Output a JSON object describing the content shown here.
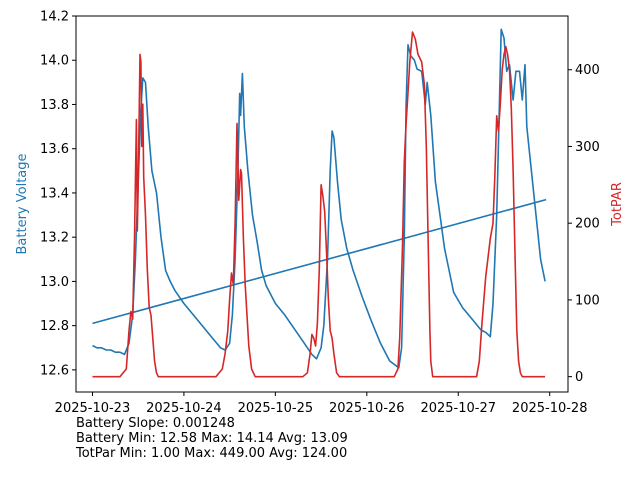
{
  "chart_data": {
    "type": "line",
    "x_axis": {
      "ticks": [
        "2025-10-23",
        "2025-10-24",
        "2025-10-25",
        "2025-10-26",
        "2025-10-27",
        "2025-10-28"
      ],
      "range_days": [
        -0.18,
        5.2
      ]
    },
    "left_axis": {
      "label": "Battery Voltage",
      "color": "#1f77b4",
      "ylim": [
        12.5,
        14.2
      ],
      "ticks": [
        "12.6",
        "12.8",
        "13.0",
        "13.2",
        "13.4",
        "13.6",
        "13.8",
        "14.0",
        "14.2"
      ]
    },
    "right_axis": {
      "label": "TotPAR",
      "color": "#d62728",
      "ylim": [
        -20,
        470
      ],
      "ticks": [
        "0",
        "100",
        "200",
        "300",
        "400"
      ]
    },
    "series": [
      {
        "name": "Battery Voltage",
        "axis": "left",
        "color": "#1f77b4",
        "points": [
          [
            0.0,
            12.71
          ],
          [
            0.05,
            12.7
          ],
          [
            0.1,
            12.7
          ],
          [
            0.15,
            12.69
          ],
          [
            0.2,
            12.69
          ],
          [
            0.25,
            12.68
          ],
          [
            0.3,
            12.68
          ],
          [
            0.35,
            12.67
          ],
          [
            0.4,
            12.72
          ],
          [
            0.44,
            12.85
          ],
          [
            0.47,
            13.1
          ],
          [
            0.5,
            13.45
          ],
          [
            0.53,
            13.78
          ],
          [
            0.55,
            13.92
          ],
          [
            0.58,
            13.9
          ],
          [
            0.61,
            13.7
          ],
          [
            0.65,
            13.5
          ],
          [
            0.7,
            13.4
          ],
          [
            0.75,
            13.2
          ],
          [
            0.8,
            13.05
          ],
          [
            0.85,
            13.0
          ],
          [
            0.9,
            12.96
          ],
          [
            1.0,
            12.9
          ],
          [
            1.1,
            12.85
          ],
          [
            1.2,
            12.8
          ],
          [
            1.3,
            12.75
          ],
          [
            1.4,
            12.7
          ],
          [
            1.45,
            12.69
          ],
          [
            1.5,
            12.72
          ],
          [
            1.53,
            12.85
          ],
          [
            1.56,
            13.1
          ],
          [
            1.59,
            13.5
          ],
          [
            1.61,
            13.85
          ],
          [
            1.62,
            13.75
          ],
          [
            1.64,
            13.94
          ],
          [
            1.66,
            13.7
          ],
          [
            1.7,
            13.5
          ],
          [
            1.75,
            13.3
          ],
          [
            1.8,
            13.18
          ],
          [
            1.85,
            13.05
          ],
          [
            1.9,
            12.98
          ],
          [
            2.0,
            12.9
          ],
          [
            2.1,
            12.85
          ],
          [
            2.2,
            12.79
          ],
          [
            2.3,
            12.73
          ],
          [
            2.4,
            12.67
          ],
          [
            2.45,
            12.65
          ],
          [
            2.5,
            12.7
          ],
          [
            2.53,
            12.8
          ],
          [
            2.57,
            13.1
          ],
          [
            2.6,
            13.5
          ],
          [
            2.62,
            13.68
          ],
          [
            2.64,
            13.65
          ],
          [
            2.68,
            13.45
          ],
          [
            2.72,
            13.28
          ],
          [
            2.78,
            13.15
          ],
          [
            2.85,
            13.05
          ],
          [
            2.95,
            12.93
          ],
          [
            3.05,
            12.82
          ],
          [
            3.15,
            12.72
          ],
          [
            3.25,
            12.64
          ],
          [
            3.35,
            12.61
          ],
          [
            3.38,
            12.7
          ],
          [
            3.41,
            13.2
          ],
          [
            3.43,
            13.8
          ],
          [
            3.45,
            14.07
          ],
          [
            3.48,
            14.02
          ],
          [
            3.52,
            14.0
          ],
          [
            3.55,
            13.96
          ],
          [
            3.6,
            13.95
          ],
          [
            3.64,
            13.8
          ],
          [
            3.66,
            13.9
          ],
          [
            3.7,
            13.75
          ],
          [
            3.75,
            13.45
          ],
          [
            3.8,
            13.3
          ],
          [
            3.85,
            13.15
          ],
          [
            3.9,
            13.05
          ],
          [
            3.95,
            12.95
          ],
          [
            4.05,
            12.88
          ],
          [
            4.15,
            12.83
          ],
          [
            4.25,
            12.78
          ],
          [
            4.3,
            12.77
          ],
          [
            4.35,
            12.75
          ],
          [
            4.38,
            12.9
          ],
          [
            4.42,
            13.3
          ],
          [
            4.45,
            13.8
          ],
          [
            4.47,
            14.14
          ],
          [
            4.5,
            14.1
          ],
          [
            4.53,
            13.95
          ],
          [
            4.56,
            13.98
          ],
          [
            4.6,
            13.82
          ],
          [
            4.63,
            13.95
          ],
          [
            4.67,
            13.95
          ],
          [
            4.7,
            13.82
          ],
          [
            4.73,
            13.98
          ],
          [
            4.75,
            13.7
          ],
          [
            4.8,
            13.5
          ],
          [
            4.85,
            13.3
          ],
          [
            4.9,
            13.1
          ],
          [
            4.95,
            13.0
          ]
        ]
      },
      {
        "name": "Battery Trend",
        "axis": "left",
        "color": "#1f77b4",
        "points": [
          [
            0.0,
            12.81
          ],
          [
            4.96,
            13.37
          ]
        ]
      },
      {
        "name": "TotPAR",
        "axis": "right",
        "color": "#d62728",
        "points": [
          [
            0.0,
            0
          ],
          [
            0.3,
            0
          ],
          [
            0.37,
            10
          ],
          [
            0.4,
            60
          ],
          [
            0.42,
            85
          ],
          [
            0.44,
            75
          ],
          [
            0.46,
            180
          ],
          [
            0.48,
            335
          ],
          [
            0.49,
            190
          ],
          [
            0.5,
            250
          ],
          [
            0.52,
            420
          ],
          [
            0.53,
            410
          ],
          [
            0.54,
            300
          ],
          [
            0.55,
            355
          ],
          [
            0.56,
            260
          ],
          [
            0.58,
            210
          ],
          [
            0.6,
            140
          ],
          [
            0.62,
            90
          ],
          [
            0.64,
            80
          ],
          [
            0.66,
            50
          ],
          [
            0.68,
            20
          ],
          [
            0.7,
            5
          ],
          [
            0.72,
            0
          ],
          [
            1.35,
            0
          ],
          [
            1.42,
            10
          ],
          [
            1.45,
            30
          ],
          [
            1.48,
            60
          ],
          [
            1.5,
            100
          ],
          [
            1.52,
            135
          ],
          [
            1.54,
            120
          ],
          [
            1.56,
            200
          ],
          [
            1.58,
            330
          ],
          [
            1.6,
            230
          ],
          [
            1.62,
            270
          ],
          [
            1.63,
            265
          ],
          [
            1.65,
            180
          ],
          [
            1.67,
            120
          ],
          [
            1.69,
            80
          ],
          [
            1.71,
            40
          ],
          [
            1.74,
            10
          ],
          [
            1.78,
            0
          ],
          [
            2.3,
            0
          ],
          [
            2.35,
            5
          ],
          [
            2.38,
            30
          ],
          [
            2.4,
            55
          ],
          [
            2.42,
            50
          ],
          [
            2.44,
            40
          ],
          [
            2.46,
            70
          ],
          [
            2.48,
            140
          ],
          [
            2.5,
            250
          ],
          [
            2.52,
            235
          ],
          [
            2.54,
            215
          ],
          [
            2.56,
            160
          ],
          [
            2.58,
            100
          ],
          [
            2.6,
            60
          ],
          [
            2.62,
            50
          ],
          [
            2.64,
            30
          ],
          [
            2.67,
            5
          ],
          [
            2.7,
            0
          ],
          [
            3.3,
            0
          ],
          [
            3.34,
            10
          ],
          [
            3.36,
            50
          ],
          [
            3.39,
            170
          ],
          [
            3.41,
            280
          ],
          [
            3.43,
            330
          ],
          [
            3.45,
            370
          ],
          [
            3.47,
            410
          ],
          [
            3.5,
            449
          ],
          [
            3.53,
            440
          ],
          [
            3.56,
            420
          ],
          [
            3.6,
            410
          ],
          [
            3.63,
            380
          ],
          [
            3.65,
            300
          ],
          [
            3.67,
            180
          ],
          [
            3.69,
            60
          ],
          [
            3.7,
            20
          ],
          [
            3.72,
            0
          ],
          [
            4.2,
            0
          ],
          [
            4.23,
            20
          ],
          [
            4.26,
            70
          ],
          [
            4.3,
            130
          ],
          [
            4.35,
            180
          ],
          [
            4.38,
            200
          ],
          [
            4.4,
            260
          ],
          [
            4.42,
            340
          ],
          [
            4.44,
            320
          ],
          [
            4.46,
            355
          ],
          [
            4.48,
            400
          ],
          [
            4.5,
            420
          ],
          [
            4.52,
            430
          ],
          [
            4.54,
            420
          ],
          [
            4.56,
            400
          ],
          [
            4.58,
            350
          ],
          [
            4.6,
            270
          ],
          [
            4.62,
            160
          ],
          [
            4.64,
            60
          ],
          [
            4.66,
            20
          ],
          [
            4.68,
            5
          ],
          [
            4.7,
            0
          ],
          [
            4.95,
            0
          ]
        ]
      }
    ]
  },
  "stats": {
    "battery_slope": "Battery Slope: 0.001248",
    "battery_range": "Battery Min: 12.58 Max: 14.14 Avg: 13.09",
    "totpar_range": "TotPar Min: 1.00 Max: 449.00 Avg: 124.00"
  }
}
